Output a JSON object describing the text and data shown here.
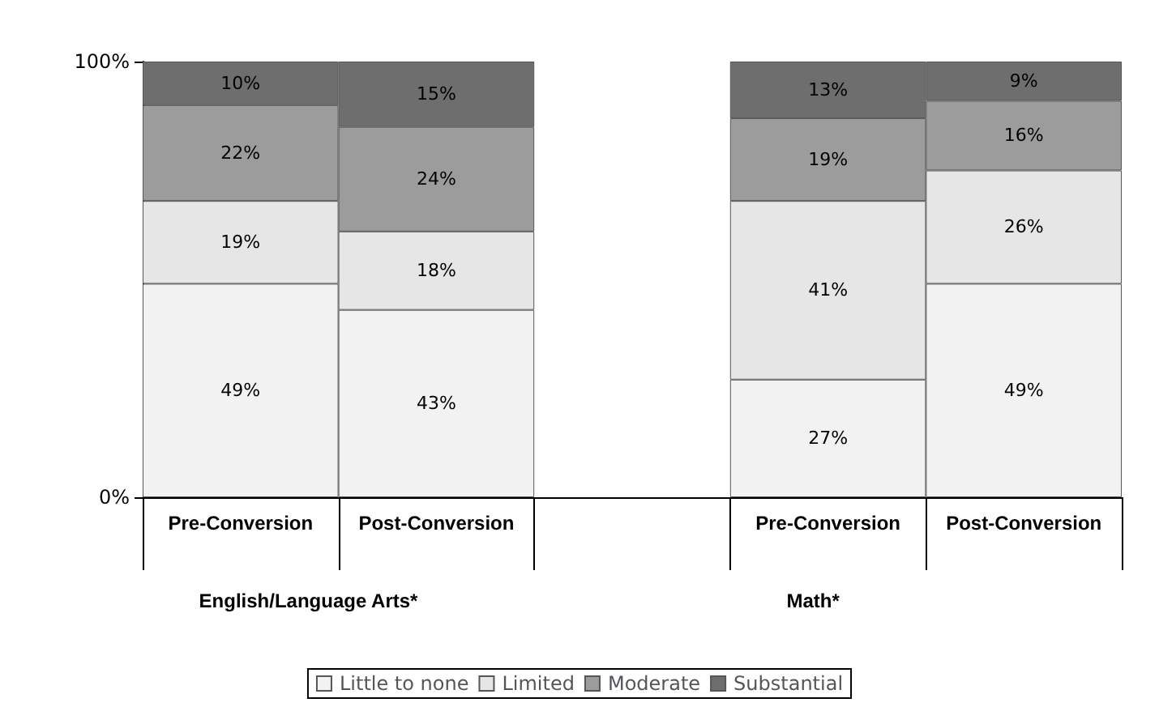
{
  "chart_data": {
    "type": "bar",
    "stacked": true,
    "categories": [
      "Pre-Conversion",
      "Post-Conversion",
      null,
      "Pre-Conversion",
      "Post-Conversion"
    ],
    "series": [
      {
        "name": "Little to none",
        "color": "#f2f2f2",
        "values": [
          49,
          43,
          null,
          27,
          49
        ],
        "value_labels": [
          "49%",
          "43%",
          null,
          "27%",
          "49%"
        ]
      },
      {
        "name": "Limited",
        "color": "#e6e6e6",
        "values": [
          19,
          18,
          null,
          41,
          26
        ],
        "value_labels": [
          "19%",
          "18%",
          null,
          "41%",
          "26%"
        ]
      },
      {
        "name": "Moderate",
        "color": "#9c9c9c",
        "values": [
          22,
          24,
          null,
          19,
          16
        ],
        "value_labels": [
          "22%",
          "24%",
          null,
          "19%",
          "16%"
        ]
      },
      {
        "name": "Substantial",
        "color": "#6e6e6e",
        "values": [
          10,
          15,
          null,
          13,
          9
        ],
        "value_labels": [
          "10%",
          "15%",
          null,
          "13%",
          "9%"
        ]
      }
    ],
    "ylim": [
      0,
      100
    ],
    "yticks": [
      {
        "value": 0,
        "label": "0%"
      },
      {
        "value": 100,
        "label": "100%"
      }
    ],
    "annotations": [
      "English/Language Arts*",
      "Math*"
    ],
    "grid": false,
    "legend": "bottom"
  }
}
